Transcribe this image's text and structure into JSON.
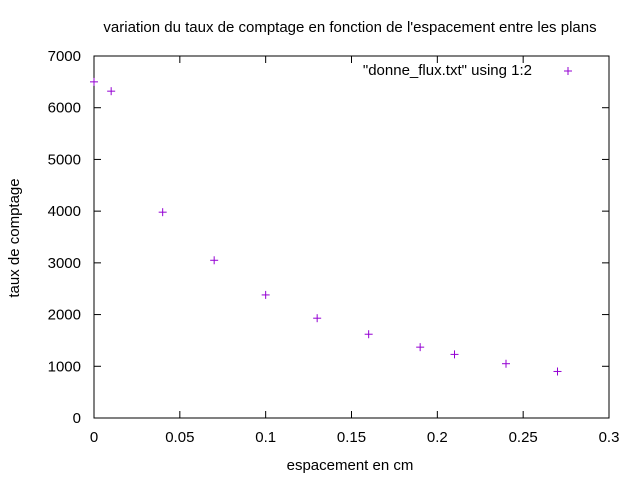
{
  "chart_data": {
    "type": "scatter",
    "title": "variation du taux de comptage en fonction de l'espacement entre les plans",
    "xlabel": "espacement en cm",
    "ylabel": "taux de comptage",
    "xlim": [
      0,
      0.3
    ],
    "ylim": [
      0,
      7000
    ],
    "xticks": [
      0,
      0.05,
      0.1,
      0.15,
      0.2,
      0.25,
      0.3
    ],
    "xtick_labels": [
      "0",
      "0.05",
      "0.1",
      "0.15",
      "0.2",
      "0.25",
      "0.3"
    ],
    "yticks": [
      0,
      1000,
      2000,
      3000,
      4000,
      5000,
      6000,
      7000
    ],
    "ytick_labels": [
      "0",
      "1000",
      "2000",
      "3000",
      "4000",
      "5000",
      "6000",
      "7000"
    ],
    "grid": false,
    "legend_position": "top-right",
    "marker": "plus",
    "series": [
      {
        "name": "\"donne_flux.txt\" using 1:2",
        "color": "#9400d3",
        "x": [
          0,
          0.01,
          0.04,
          0.07,
          0.1,
          0.13,
          0.16,
          0.19,
          0.21,
          0.24,
          0.27
        ],
        "y": [
          6500,
          6320,
          3980,
          3050,
          2380,
          1930,
          1620,
          1370,
          1230,
          1050,
          900
        ]
      }
    ]
  }
}
